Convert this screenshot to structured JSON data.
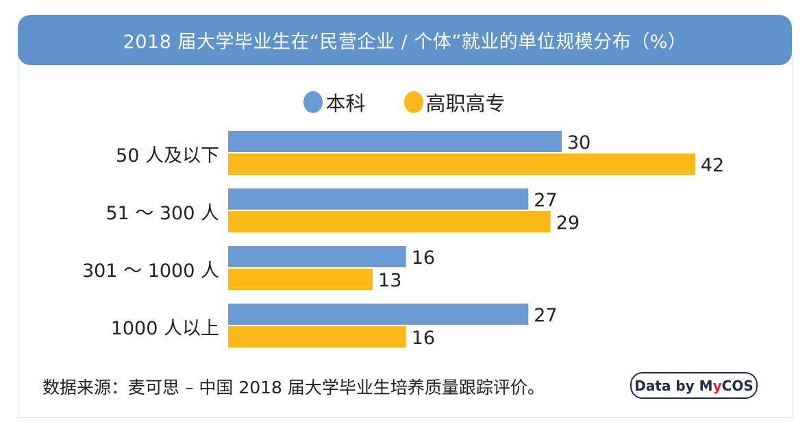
{
  "chart_data": {
    "type": "bar",
    "orientation": "horizontal",
    "title": "2018 届大学毕业生在“民营企业 / 个体”就业的单位规模分布（%）",
    "categories": [
      "50 人及以下",
      "51 ～ 300 人",
      "301 ～ 1000 人",
      "1000 人以上"
    ],
    "series": [
      {
        "name": "本科",
        "values": [
          30,
          27,
          16,
          27
        ],
        "color": "#6a9bd4"
      },
      {
        "name": "高职高专",
        "values": [
          42,
          29,
          13,
          16
        ],
        "color": "#fbb919"
      }
    ],
    "xlim": [
      0,
      45
    ],
    "grid": false,
    "legend": "top-center",
    "data_labels": true
  },
  "source": "数据来源：麦可思 – 中国 2018 届大学毕业生培养质量跟踪评价。",
  "badge": {
    "prefix": "Data by M",
    "y": "y",
    "suffix": "COS"
  }
}
